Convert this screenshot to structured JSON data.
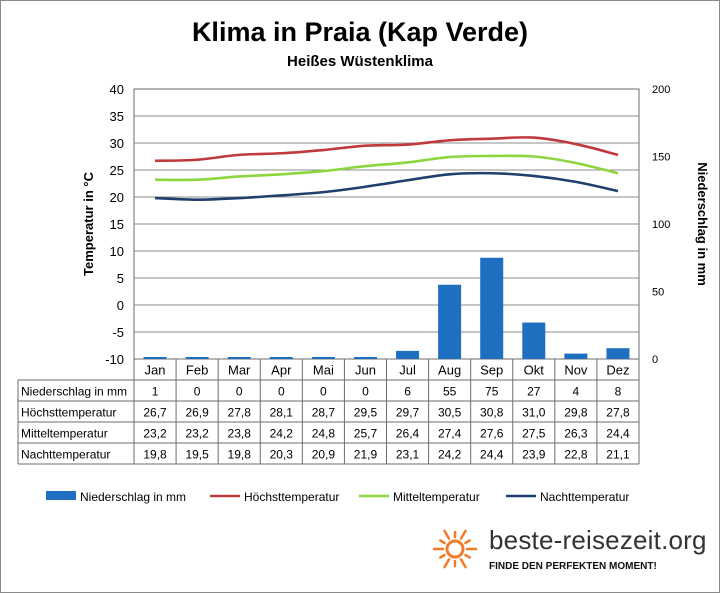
{
  "chart_data": {
    "type": "bar+line",
    "title": "Klima in Praia (Kap Verde)",
    "subtitle": "Heißes Wüstenklima",
    "ylabel_left": "Temperatur in °C",
    "ylabel_right": "Niederschlag in mm",
    "ylim_left": [
      -10,
      40
    ],
    "yticks_left": [
      "40",
      "35",
      "30",
      "25",
      "20",
      "15",
      "10",
      "5",
      "0",
      "-5",
      "-10"
    ],
    "ylim_right": [
      0,
      200
    ],
    "yticks_right": [
      "200",
      "150",
      "100",
      "50",
      "0"
    ],
    "categories": [
      "Jan",
      "Feb",
      "Mar",
      "Apr",
      "Mai",
      "Jun",
      "Jul",
      "Aug",
      "Sep",
      "Okt",
      "Nov",
      "Dez"
    ],
    "series": [
      {
        "name": "Niederschlag in mm",
        "type": "bar",
        "axis": "right",
        "color": "#1f6fc1",
        "values": [
          1,
          0,
          0,
          0,
          0,
          0,
          6,
          55,
          75,
          27,
          4,
          8
        ],
        "labels": [
          "1",
          "0",
          "0",
          "0",
          "0",
          "0",
          "6",
          "55",
          "75",
          "27",
          "4",
          "8"
        ]
      },
      {
        "name": "Höchsttemperatur",
        "type": "line",
        "axis": "left",
        "color": "#c0393b",
        "values": [
          26.7,
          26.9,
          27.8,
          28.1,
          28.7,
          29.5,
          29.7,
          30.5,
          30.8,
          31.0,
          29.8,
          27.8
        ],
        "labels": [
          "26,7",
          "26,9",
          "27,8",
          "28,1",
          "28,7",
          "29,5",
          "29,7",
          "30,5",
          "30,8",
          "31,0",
          "29,8",
          "27,8"
        ]
      },
      {
        "name": "Mitteltemperatur",
        "type": "line",
        "axis": "left",
        "color": "#8dd63f",
        "values": [
          23.2,
          23.2,
          23.8,
          24.2,
          24.8,
          25.7,
          26.4,
          27.4,
          27.6,
          27.5,
          26.3,
          24.4
        ],
        "labels": [
          "23,2",
          "23,2",
          "23,8",
          "24,2",
          "24,8",
          "25,7",
          "26,4",
          "27,4",
          "27,6",
          "27,5",
          "26,3",
          "24,4"
        ]
      },
      {
        "name": "Nachttemperatur",
        "type": "line",
        "axis": "left",
        "color": "#1f3f6e",
        "values": [
          19.8,
          19.5,
          19.8,
          20.3,
          20.9,
          21.9,
          23.1,
          24.2,
          24.4,
          23.9,
          22.8,
          21.1
        ],
        "labels": [
          "19,8",
          "19,5",
          "19,8",
          "20,3",
          "20,9",
          "21,9",
          "23,1",
          "24,2",
          "24,4",
          "23,9",
          "22,8",
          "21,1"
        ]
      }
    ],
    "table_row_labels": [
      "Niederschlag in mm",
      "Höchsttemperatur",
      "Mitteltemperatur",
      "Nachttemperatur"
    ]
  },
  "branding": {
    "name": "beste-reisezeit.org",
    "tagline": "FINDE DEN PERFEKTEN MOMENT!",
    "sun_color": "#ef7b2b"
  }
}
